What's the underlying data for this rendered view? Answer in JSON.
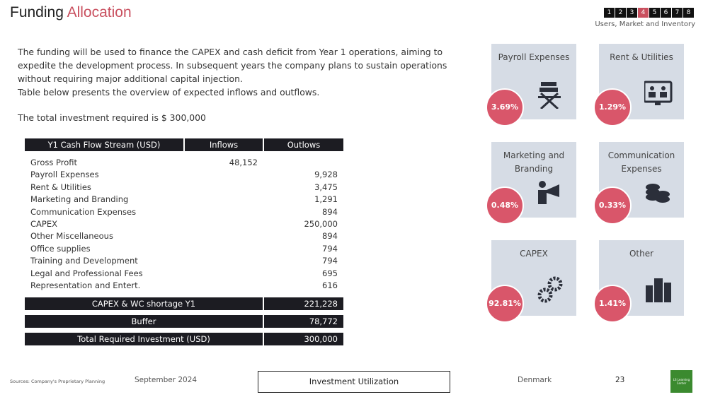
{
  "header": {
    "title_1": "Funding",
    "title_2": "Allocation",
    "nav": [
      "1",
      "2",
      "3",
      "4",
      "5",
      "6",
      "7",
      "8"
    ],
    "subtitle": "Users, Market and Inventory"
  },
  "intro": {
    "paragraphs": [
      "The funding will be used to finance the CAPEX and cash deficit from Year 1 operations, aiming to expedite the development process. In subsequent years the company plans to sustain operations without requiring major additional capital injection.",
      "Table below presents the overview of expected inflows and outflows."
    ],
    "total": "The total investment required is $ 300,000"
  },
  "table": {
    "header": [
      "Y1 Cash Flow Stream (USD)",
      "Inflows",
      "Outlows"
    ],
    "rows": [
      {
        "label": "Gross Profit",
        "inflow": "48,152"
      },
      {
        "label": "Payroll Expenses",
        "outflow": "9,928"
      },
      {
        "label": "Rent & Utilities",
        "outflow": "3,475"
      },
      {
        "label": "Marketing and Branding",
        "outflow": "1,291"
      },
      {
        "label": "Communication Expenses",
        "outflow": "894"
      },
      {
        "label": "CAPEX",
        "outflow": "250,000"
      },
      {
        "label": "Other Miscellaneous",
        "outflow": "894"
      },
      {
        "label": "Office supplies",
        "outflow": "794"
      },
      {
        "label": "Training and Development",
        "outflow": "794"
      },
      {
        "label": "Legal and Professional Fees",
        "outflow": "695"
      },
      {
        "label": "Representation and Entert.",
        "outflow": "616"
      }
    ],
    "summary": [
      {
        "label": "CAPEX & WC shortage Y1",
        "value": "221,228"
      },
      {
        "label": "Buffer",
        "value": "78,772"
      },
      {
        "label": "Total Required Investment (USD)",
        "value": "300,000"
      }
    ]
  },
  "cards": [
    {
      "title": "Payroll Expenses",
      "share": "3.69%"
    },
    {
      "title": "Rent & Utilities",
      "share": "1.29%"
    },
    {
      "title": "Marketing and Branding",
      "share": "0.48%"
    },
    {
      "title": "Communication Expenses",
      "share": "0.33%"
    },
    {
      "title": "CAPEX",
      "share": "92.81%"
    },
    {
      "title": "Other",
      "share": "1.41%"
    }
  ],
  "footer": {
    "source": "Sources: Company's Proprietary Planning",
    "date": "September 2024",
    "button": "Investment Utilization",
    "country": "Denmark",
    "page": "23",
    "logo": "LS Learning Center"
  }
}
